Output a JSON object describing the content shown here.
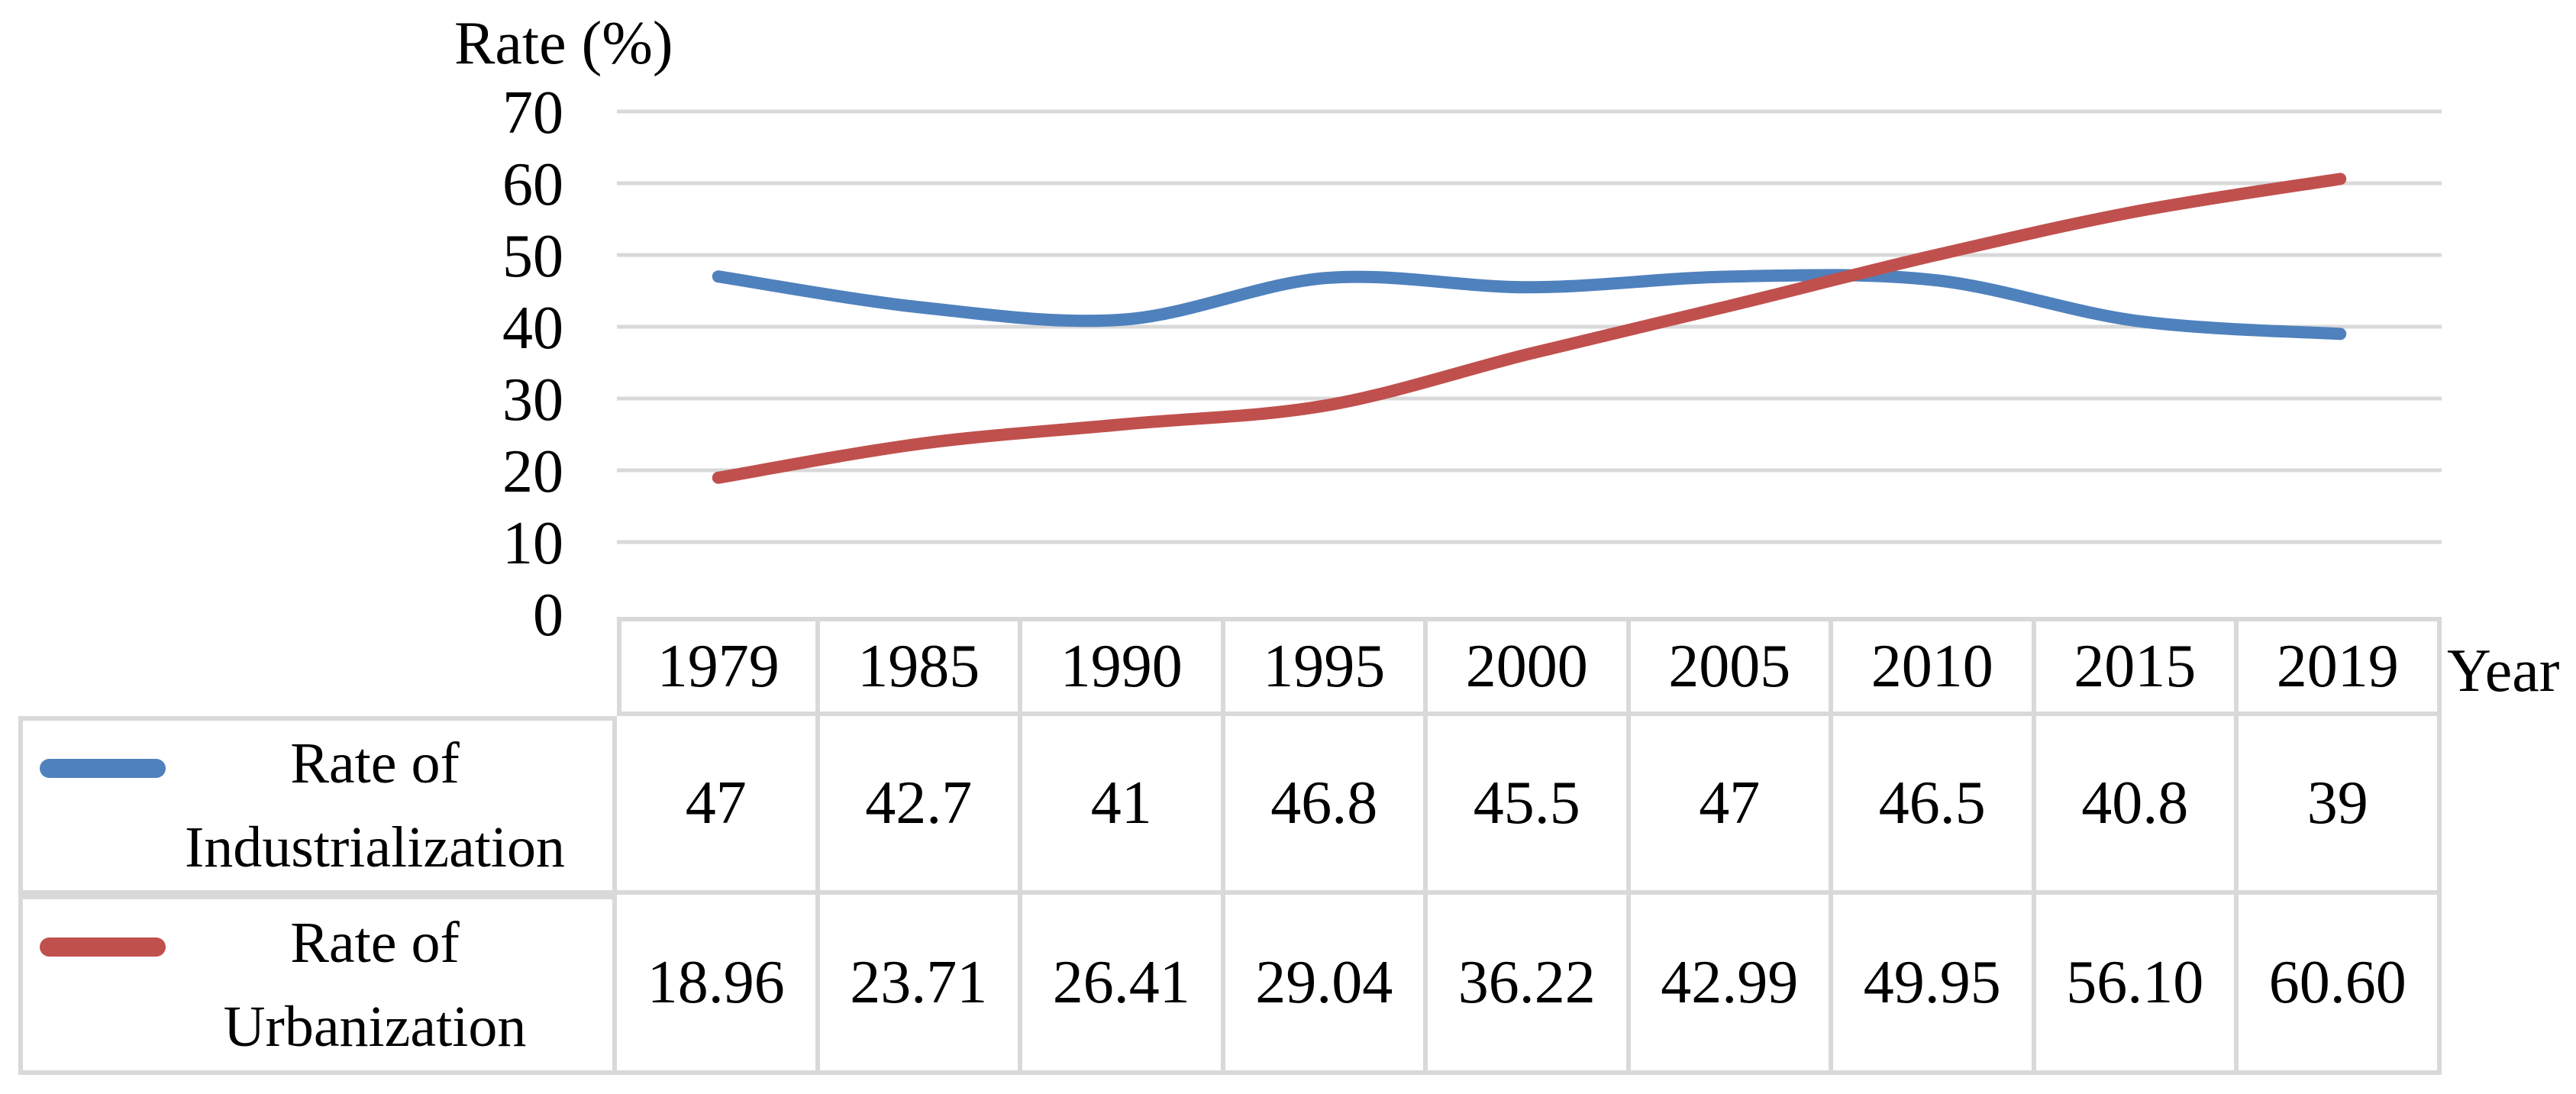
{
  "chart_data": {
    "type": "line",
    "title": "Rate (%)",
    "xlabel": "Year",
    "ylabel": "Rate (%)",
    "categories": [
      "1979",
      "1985",
      "1990",
      "1995",
      "2000",
      "2005",
      "2010",
      "2015",
      "2019"
    ],
    "series": [
      {
        "name": "Rate of Industrialization",
        "label_lines": "Rate of\nIndustrialization",
        "color": "#4F81BD",
        "values": [
          47,
          42.7,
          41,
          46.8,
          45.5,
          47,
          46.5,
          40.8,
          39
        ],
        "display": [
          "47",
          "42.7",
          "41",
          "46.8",
          "45.5",
          "47",
          "46.5",
          "40.8",
          "39"
        ]
      },
      {
        "name": "Rate of Urbanization",
        "label_lines": "Rate of\nUrbanization",
        "color": "#C0504D",
        "values": [
          18.96,
          23.71,
          26.41,
          29.04,
          36.22,
          42.99,
          49.95,
          56.1,
          60.6
        ],
        "display": [
          "18.96",
          "23.71",
          "26.41",
          "29.04",
          "36.22",
          "42.99",
          "49.95",
          "56.10",
          "60.60"
        ]
      }
    ],
    "ylim": [
      0,
      70
    ],
    "yticks": [
      0,
      10,
      20,
      30,
      40,
      50,
      60,
      70
    ],
    "grid": true,
    "legend_position": "table-left",
    "grid_color": "#D9D9D9",
    "table_border_color": "#D9D9D9"
  }
}
